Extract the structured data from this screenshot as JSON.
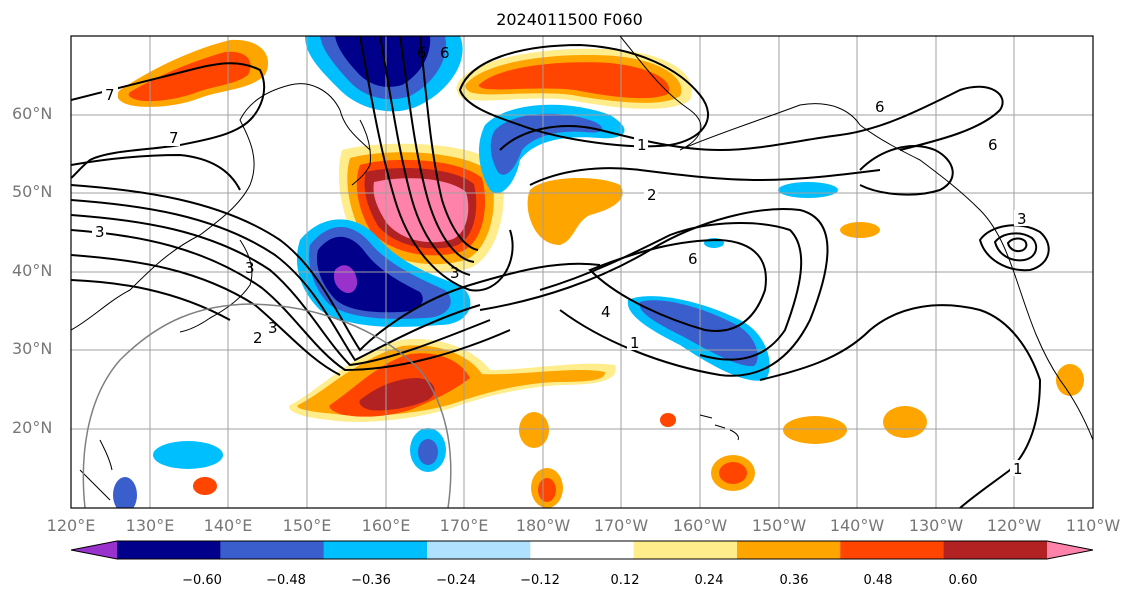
{
  "title": "2024011500 F060",
  "lat_labels": [
    "60°N",
    "50°N",
    "40°N",
    "30°N",
    "20°N"
  ],
  "lon_labels": [
    "120°E",
    "130°E",
    "140°E",
    "150°E",
    "160°E",
    "170°E",
    "180°W",
    "170°W",
    "160°W",
    "150°W",
    "140°W",
    "130°W",
    "120°W",
    "110°W"
  ],
  "colorbar": {
    "tick_labels": [
      "−0.60",
      "−0.48",
      "−0.36",
      "−0.24",
      "−0.12",
      "0.12",
      "0.24",
      "0.36",
      "0.48",
      "0.60"
    ],
    "colors": [
      "#9932cc",
      "#00008b",
      "#3a5fcd",
      "#00bfff",
      "#b0e2ff",
      "#ffffff",
      "#ffec8b",
      "#ffa500",
      "#ff4500",
      "#b22222",
      "#ff82ab"
    ]
  },
  "contour_labels": [
    "7",
    "7",
    "6",
    "6",
    "1",
    "2",
    "6",
    "6",
    "3",
    "3",
    "3",
    "2",
    "4",
    "1",
    "1",
    "3",
    "3",
    "6"
  ]
}
